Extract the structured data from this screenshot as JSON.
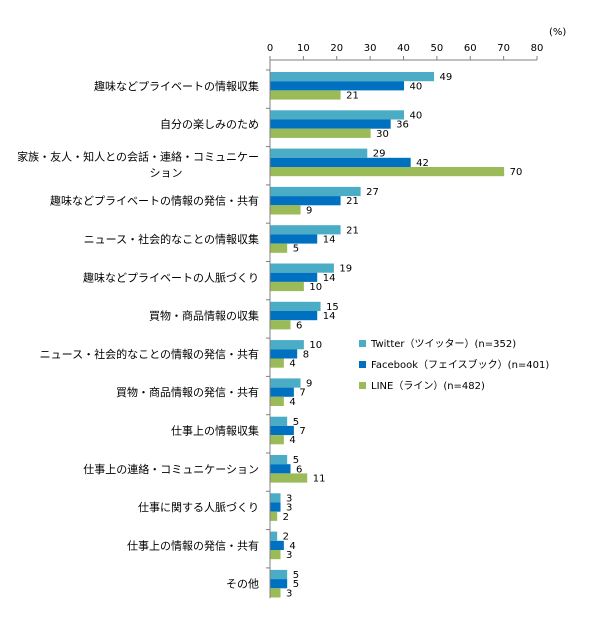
{
  "chart_data": {
    "type": "bar",
    "orientation": "horizontal",
    "unit": "(%)",
    "xlim": [
      0,
      80
    ],
    "ticks": [
      0,
      10,
      20,
      30,
      40,
      50,
      60,
      70,
      80
    ],
    "grid": false,
    "legend_position": "right",
    "categories": [
      [
        "趣味などプライベートの情報収集"
      ],
      [
        "自分の楽しみのため"
      ],
      [
        "家族・友人・知人との会話・連絡・コミュニケー",
        "ション"
      ],
      [
        "趣味などプライベートの情報の発信・共有"
      ],
      [
        "ニュース・社会的なことの情報収集"
      ],
      [
        "趣味などプライベートの人脈づくり"
      ],
      [
        "買物・商品情報の収集"
      ],
      [
        "ニュース・社会的なことの情報の発信・共有"
      ],
      [
        "買物・商品情報の発信・共有"
      ],
      [
        "仕事上の情報収集"
      ],
      [
        "仕事上の連絡・コミュニケーション"
      ],
      [
        "仕事に関する人脈づくり"
      ],
      [
        "仕事上の情報の発信・共有"
      ],
      [
        "その他"
      ]
    ],
    "series": [
      {
        "name": "Twitter（ツイッター）(n=352)",
        "color": "#4BACC6",
        "values": [
          49,
          40,
          29,
          27,
          21,
          19,
          15,
          10,
          9,
          5,
          5,
          3,
          2,
          5
        ]
      },
      {
        "name": "Facebook（フェイスブック）(n=401)",
        "color": "#0070C0",
        "values": [
          40,
          36,
          42,
          21,
          14,
          14,
          14,
          8,
          7,
          7,
          6,
          3,
          4,
          5
        ]
      },
      {
        "name": "LINE（ライン）(n=482)",
        "color": "#9BBB59",
        "values": [
          21,
          30,
          70,
          9,
          5,
          10,
          6,
          4,
          4,
          4,
          11,
          2,
          3,
          3
        ]
      }
    ]
  }
}
